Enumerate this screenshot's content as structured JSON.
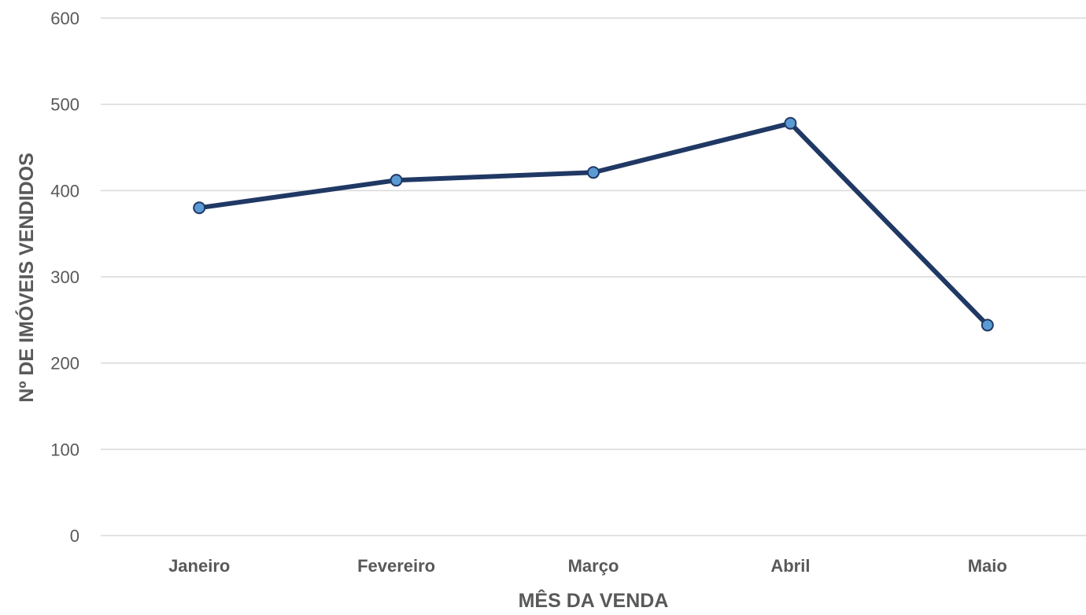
{
  "chart_data": {
    "type": "line",
    "categories": [
      "Janeiro",
      "Fevereiro",
      "Março",
      "Abril",
      "Maio"
    ],
    "series": [
      {
        "values": [
          380,
          412,
          421,
          478,
          244
        ],
        "color": "#203864",
        "marker_color": "#5b9bd5"
      }
    ],
    "xlabel": "MÊS DA VENDA",
    "ylabel": "Nº DE IMÓVEIS VENDIDOS",
    "ylim": [
      0,
      600
    ],
    "yticks": [
      "0",
      "100",
      "200",
      "300",
      "400",
      "500",
      "600"
    ],
    "grid": true,
    "legend": "none"
  }
}
